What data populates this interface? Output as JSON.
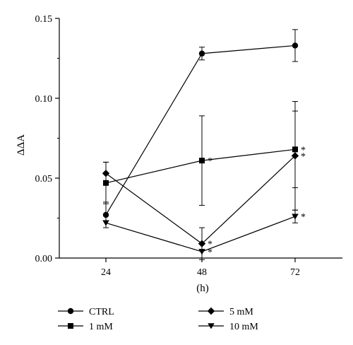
{
  "chart_data": {
    "type": "line",
    "title": "",
    "xlabel": "(h)",
    "ylabel": "ΔΔA",
    "x": [
      24,
      48,
      72
    ],
    "x_ticks": [
      "24",
      "48",
      "72"
    ],
    "ylim": [
      0,
      0.15
    ],
    "y_ticks": [
      "0.00",
      "0.05",
      "0.10",
      "0.15"
    ],
    "y_tick_values": [
      0,
      0.05,
      0.1,
      0.15
    ],
    "grid": false,
    "legend_placement": "bottom",
    "series": [
      {
        "name": "CTRL",
        "marker": "circle",
        "values": [
          0.027,
          0.128,
          0.133
        ],
        "error": [
          0.008,
          0.004,
          0.01
        ],
        "annotations": [
          "",
          "",
          ""
        ]
      },
      {
        "name": "1 mM",
        "marker": "square",
        "values": [
          0.047,
          0.061,
          0.068
        ],
        "error": [
          0.013,
          0.028,
          0.024
        ],
        "annotations": [
          "",
          "*",
          "*"
        ]
      },
      {
        "name": "5 mM",
        "marker": "diamond",
        "values": [
          0.053,
          0.009,
          0.064
        ],
        "error": [
          0.007,
          0.01,
          0.034
        ],
        "annotations": [
          "",
          "*",
          "*"
        ]
      },
      {
        "name": "10 mM",
        "marker": "triangle-down",
        "values": [
          0.022,
          0.004,
          0.026
        ],
        "error": [
          0.0,
          0.0,
          0.004
        ],
        "annotations": [
          "",
          "*",
          "*"
        ]
      }
    ]
  }
}
